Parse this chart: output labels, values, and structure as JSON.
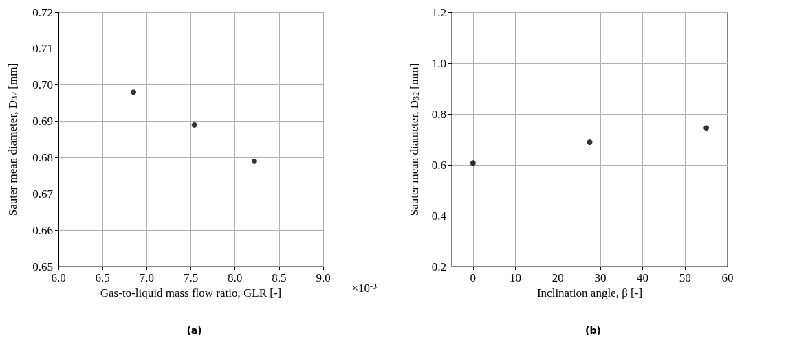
{
  "chart_data": [
    {
      "type": "scatter",
      "title": "(a)",
      "xlabel": "Gas-to-liquid mass flow ratio, GLR [-]",
      "ylabel": "Sauter mean diameter, D$_{32}$ [mm]",
      "annotations": [
        "×10$^{-3}$"
      ],
      "x": [
        6.85,
        7.54,
        8.22
      ],
      "values": [
        0.698,
        0.689,
        0.679
      ],
      "color": "#000000",
      "marker": "circle",
      "xlim": [
        6.0,
        9.0
      ],
      "xticks": [
        {
          "value": 6.0,
          "label": "6.0"
        },
        6.5,
        {
          "value": 7.0,
          "label": "7.0"
        },
        7.5,
        {
          "value": 8.0,
          "label": "8.0"
        },
        8.5,
        {
          "value": 9.0,
          "label": "9.0"
        }
      ],
      "ylim": [
        0.65,
        0.72
      ],
      "yticks": [
        0.65,
        0.66,
        0.67,
        0.68,
        0.69,
        {
          "value": 0.7,
          "label": "0.70"
        },
        0.71,
        0.72
      ],
      "grid": true
    },
    {
      "type": "scatter",
      "title": "(b)",
      "xlabel": "Inclination angle, β [-]",
      "ylabel": "Sauter mean diameter, D$_{32}$ [mm]",
      "x": [
        0,
        27.5,
        55
      ],
      "values": [
        0.607,
        0.689,
        0.745
      ],
      "color": "#000000",
      "marker": "circle",
      "xlim": [
        -5,
        60
      ],
      "xticks": [
        0,
        10,
        20,
        30,
        40,
        50,
        60
      ],
      "ylim": [
        0.2,
        1.2
      ],
      "yticks": [
        0.2,
        0.4,
        0.6,
        0.8,
        {
          "value": 1.0,
          "label": "1.0"
        },
        {
          "value": 1.2,
          "label": "1.2"
        }
      ],
      "grid": true
    }
  ]
}
